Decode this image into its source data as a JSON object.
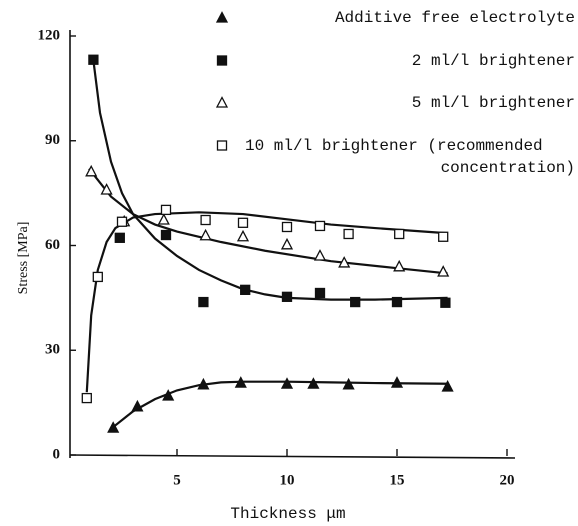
{
  "chart_data": {
    "type": "scatter",
    "x_label": "Thickness μm",
    "y_label": "Stress [MPa]",
    "xlim": [
      0,
      20
    ],
    "ylim": [
      0,
      120
    ],
    "xticks": [
      5,
      10,
      15,
      20
    ],
    "yticks": [
      0,
      30,
      60,
      90,
      120
    ],
    "series": [
      {
        "name": "Additive free electrolyte",
        "color": "#111111",
        "marker": "triangle",
        "filled": true,
        "x": [
          2.1,
          3.2,
          4.6,
          6.2,
          7.9,
          10.0,
          11.2,
          12.8,
          15.0,
          17.3
        ],
        "values": [
          7.7,
          13.8,
          16.9,
          20.1,
          20.6,
          20.3,
          20.3,
          20.1,
          20.6,
          19.5
        ],
        "curve_x": [
          2.1,
          3,
          4,
          5,
          6,
          7,
          8,
          10,
          12,
          14,
          17.3
        ],
        "curve_y": [
          8,
          12.5,
          16,
          18.5,
          20,
          20.8,
          21,
          21,
          20.8,
          20.6,
          20.4
        ]
      },
      {
        "name": "2 ml/l brightener",
        "color": "#111111",
        "marker": "square",
        "filled": true,
        "x": [
          1.2,
          2.4,
          4.5,
          6.2,
          8.1,
          10.0,
          11.5,
          13.1,
          15.0,
          17.2
        ],
        "values": [
          113.2,
          62.2,
          63.0,
          43.8,
          47.3,
          45.3,
          46.4,
          43.8,
          43.8,
          43.6
        ],
        "curve_x": [
          1.2,
          1.5,
          2,
          2.5,
          3,
          4,
          5,
          6,
          7,
          8,
          9,
          10,
          12,
          14,
          17.3
        ],
        "curve_y": [
          113,
          98,
          84,
          75,
          69,
          62,
          57,
          53,
          50,
          47.5,
          46,
          45,
          44.5,
          44.5,
          45
        ]
      },
      {
        "name": "5 ml/l brightener",
        "color": "#111111",
        "marker": "triangle",
        "filled": false,
        "x": [
          1.1,
          1.8,
          2.6,
          4.4,
          6.3,
          8.0,
          10.0,
          11.5,
          12.6,
          15.1,
          17.1
        ],
        "values": [
          81.1,
          75.9,
          66.8,
          67.3,
          62.8,
          62.5,
          60.2,
          57.0,
          55.0,
          53.9,
          52.4
        ],
        "curve_x": [
          1.0,
          1.5,
          2,
          3,
          4,
          5,
          7,
          9,
          12,
          15,
          17.3
        ],
        "curve_y": [
          82,
          78,
          74,
          69,
          66,
          64,
          61,
          58.5,
          55.5,
          53.5,
          52
        ]
      },
      {
        "name": "10 ml/l brightener (recommended concentration)",
        "color": "#111111",
        "marker": "square",
        "filled": false,
        "x": [
          0.9,
          1.4,
          2.5,
          4.5,
          6.3,
          8.0,
          10.0,
          11.5,
          12.8,
          15.1,
          17.1
        ],
        "values": [
          16.3,
          51.0,
          66.8,
          70.2,
          67.3,
          66.5,
          65.3,
          65.6,
          63.3,
          63.3,
          62.5
        ],
        "curve_x": [
          0.9,
          1.1,
          1.4,
          1.8,
          2.2,
          3,
          4,
          6,
          8,
          10,
          12,
          14,
          17.3
        ],
        "curve_y": [
          18,
          40,
          53,
          61,
          65,
          68,
          69,
          69.5,
          69,
          67.5,
          66,
          65,
          63.5
        ]
      }
    ]
  }
}
